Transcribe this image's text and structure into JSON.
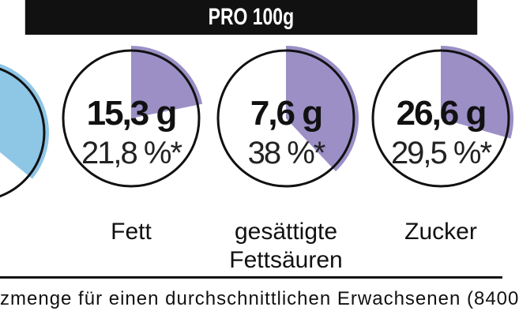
{
  "header": {
    "title": "PRO 100g"
  },
  "nutrients": [
    {
      "id": "partial-left",
      "value": "",
      "percent": "",
      "label_lines": [],
      "fraction": null,
      "color": "#8ec6e6"
    },
    {
      "id": "fett",
      "value": "15,3 g",
      "percent": "21,8 %*",
      "label_lines": [
        "Fett"
      ],
      "fraction": 0.218,
      "color": "#9b8fc6"
    },
    {
      "id": "gesaettigte-fettsaeuren",
      "value": "7,6 g",
      "percent": "38 %*",
      "label_lines": [
        "gesättigte",
        "Fettsäuren"
      ],
      "fraction": 0.38,
      "color": "#9b8fc6"
    },
    {
      "id": "zucker",
      "value": "26,6 g",
      "percent": "29,5 %*",
      "label_lines": [
        "Zucker"
      ],
      "fraction": 0.295,
      "color": "#9b8fc6"
    }
  ],
  "footnote": {
    "text": "zmenge für einen durchschnittlichen Erwachsenen (8400"
  }
}
